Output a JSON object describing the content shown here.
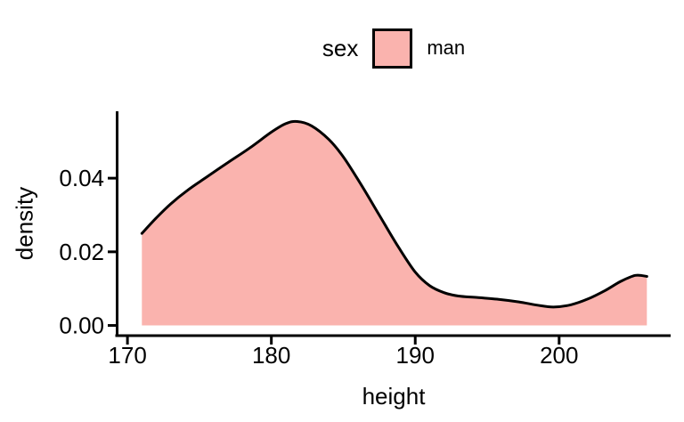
{
  "figure": {
    "background": "#FFFFFF",
    "text_color": "#000000"
  },
  "chart_data": {
    "type": "area",
    "title": "",
    "xlabel": "height",
    "ylabel": "density",
    "grid": false,
    "legend": {
      "position": "top",
      "title": "sex",
      "entries": [
        {
          "label": "man",
          "fill": "#FAB3AE",
          "border": "#000000"
        }
      ]
    },
    "xlim": [
      169.25,
      207.75
    ],
    "ylim": [
      -0.00277,
      0.05817
    ],
    "x_tick_values": [
      170,
      180,
      190,
      200
    ],
    "x_tick_labels": [
      "170",
      "180",
      "190",
      "200"
    ],
    "y_tick_values": [
      0,
      0.02,
      0.04
    ],
    "y_tick_labels": [
      "0.00",
      "0.02",
      "0.04"
    ],
    "axis_color": "#000000",
    "series": [
      {
        "name": "man",
        "fill": "#FAB3AE",
        "stroke": "#000000",
        "points": [
          [
            171.0,
            0.025
          ],
          [
            172.0,
            0.0292
          ],
          [
            173.0,
            0.033
          ],
          [
            174.2,
            0.0368
          ],
          [
            175.5,
            0.0403
          ],
          [
            177.0,
            0.0443
          ],
          [
            178.5,
            0.0482
          ],
          [
            180.0,
            0.0525
          ],
          [
            181.0,
            0.0548
          ],
          [
            181.8,
            0.0554
          ],
          [
            182.8,
            0.0542
          ],
          [
            184.0,
            0.0505
          ],
          [
            185.0,
            0.0458
          ],
          [
            186.2,
            0.0385
          ],
          [
            187.5,
            0.03
          ],
          [
            188.8,
            0.0215
          ],
          [
            190.0,
            0.0145
          ],
          [
            191.0,
            0.0108
          ],
          [
            192.0,
            0.0089
          ],
          [
            193.0,
            0.008
          ],
          [
            194.3,
            0.0076
          ],
          [
            195.8,
            0.0071
          ],
          [
            197.2,
            0.0064
          ],
          [
            198.5,
            0.0055
          ],
          [
            199.6,
            0.005
          ],
          [
            200.8,
            0.0056
          ],
          [
            202.0,
            0.0072
          ],
          [
            203.2,
            0.0095
          ],
          [
            204.3,
            0.012
          ],
          [
            205.3,
            0.0136
          ],
          [
            206.1,
            0.0133
          ]
        ]
      }
    ]
  }
}
